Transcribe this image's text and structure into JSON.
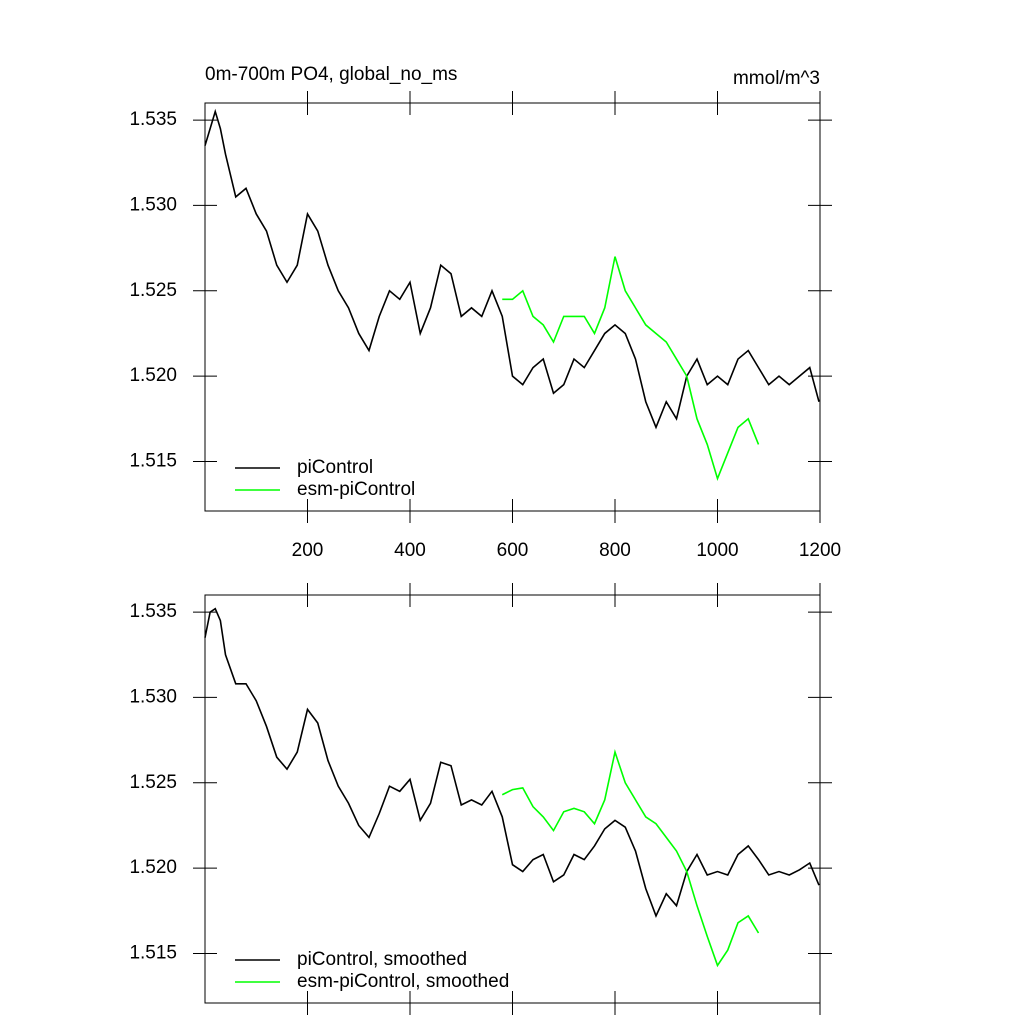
{
  "chart_data": [
    {
      "type": "line",
      "title": "0m-700m PO4, global_no_ms",
      "units": "mmol/m^3",
      "xlim": [
        0,
        1200
      ],
      "xticks": [
        200,
        400,
        600,
        800,
        1000,
        1200
      ],
      "ylim": [
        1.5121,
        1.536
      ],
      "yticks": [
        1.515,
        {
          "value": 1.52,
          "label": "1.520"
        },
        1.525,
        {
          "value": 1.53,
          "label": "1.530"
        },
        1.535
      ],
      "legend": "lower left",
      "series": [
        {
          "name": "piControl",
          "color": "#000000",
          "x": [
            0,
            10,
            20,
            30,
            40,
            60,
            80,
            100,
            120,
            140,
            160,
            180,
            200,
            220,
            240,
            260,
            280,
            300,
            320,
            340,
            360,
            380,
            400,
            420,
            440,
            460,
            480,
            500,
            520,
            540,
            560,
            580,
            600,
            620,
            640,
            660,
            680,
            700,
            720,
            740,
            760,
            780,
            800,
            820,
            840,
            860,
            880,
            900,
            920,
            940,
            960,
            980,
            1000,
            1020,
            1040,
            1060,
            1080,
            1100,
            1120,
            1140,
            1160,
            1180,
            1198
          ],
          "values": [
            1.5335,
            1.5345,
            1.5355,
            1.5345,
            1.533,
            1.5305,
            1.531,
            1.5295,
            1.5285,
            1.5265,
            1.5255,
            1.5265,
            1.5295,
            1.5285,
            1.5265,
            1.525,
            1.524,
            1.5225,
            1.5215,
            1.5235,
            1.525,
            1.5245,
            1.5255,
            1.5225,
            1.524,
            1.5265,
            1.526,
            1.5235,
            1.524,
            1.5235,
            1.525,
            1.5235,
            1.52,
            1.5195,
            1.5205,
            1.521,
            1.519,
            1.5195,
            1.521,
            1.5205,
            1.5215,
            1.5225,
            1.523,
            1.5225,
            1.521,
            1.5185,
            1.517,
            1.5185,
            1.5175,
            1.52,
            1.521,
            1.5195,
            1.52,
            1.5195,
            1.521,
            1.5215,
            1.5205,
            1.5195,
            1.52,
            1.5195,
            1.52,
            1.5205,
            1.5185
          ]
        },
        {
          "name": "esm-piControl",
          "color": "#00ff00",
          "x": [
            580,
            600,
            620,
            640,
            660,
            680,
            700,
            720,
            740,
            760,
            780,
            800,
            820,
            840,
            860,
            880,
            900,
            920,
            940,
            960,
            980,
            1000,
            1020,
            1040,
            1060,
            1080
          ],
          "values": [
            1.5245,
            1.5245,
            1.525,
            1.5235,
            1.523,
            1.522,
            1.5235,
            1.5235,
            1.5235,
            1.5225,
            1.524,
            1.527,
            1.525,
            1.524,
            1.523,
            1.5225,
            1.522,
            1.521,
            1.52,
            1.5175,
            1.516,
            1.514,
            1.5155,
            1.517,
            1.5175,
            1.516
          ]
        }
      ]
    },
    {
      "type": "line",
      "xlim": [
        0,
        1200
      ],
      "xticks": [
        200,
        400,
        600,
        800,
        1000,
        1200
      ],
      "ylim": [
        1.5121,
        1.536
      ],
      "yticks": [
        1.515,
        {
          "value": 1.52,
          "label": "1.520"
        },
        1.525,
        {
          "value": 1.53,
          "label": "1.530"
        },
        1.535
      ],
      "legend": "lower left",
      "series": [
        {
          "name": "piControl, smoothed",
          "color": "#000000",
          "x": [
            0,
            10,
            20,
            30,
            40,
            60,
            80,
            100,
            120,
            140,
            160,
            180,
            200,
            220,
            240,
            260,
            280,
            300,
            320,
            340,
            360,
            380,
            400,
            420,
            440,
            460,
            480,
            500,
            520,
            540,
            560,
            580,
            600,
            620,
            640,
            660,
            680,
            700,
            720,
            740,
            760,
            780,
            800,
            820,
            840,
            860,
            880,
            900,
            920,
            940,
            960,
            980,
            1000,
            1020,
            1040,
            1060,
            1080,
            1100,
            1120,
            1140,
            1160,
            1180,
            1198
          ],
          "values": [
            1.5335,
            1.535,
            1.5352,
            1.5345,
            1.5325,
            1.5308,
            1.5308,
            1.5298,
            1.5283,
            1.5265,
            1.5258,
            1.5268,
            1.5293,
            1.5285,
            1.5263,
            1.5248,
            1.5238,
            1.5225,
            1.5218,
            1.5232,
            1.5248,
            1.5245,
            1.5252,
            1.5228,
            1.5238,
            1.5262,
            1.526,
            1.5237,
            1.524,
            1.5237,
            1.5245,
            1.523,
            1.5202,
            1.5198,
            1.5205,
            1.5208,
            1.5192,
            1.5196,
            1.5208,
            1.5205,
            1.5213,
            1.5223,
            1.5228,
            1.5224,
            1.521,
            1.5188,
            1.5172,
            1.5185,
            1.5178,
            1.5198,
            1.5208,
            1.5196,
            1.5198,
            1.5196,
            1.5208,
            1.5213,
            1.5205,
            1.5196,
            1.5198,
            1.5196,
            1.5199,
            1.5203,
            1.519
          ]
        },
        {
          "name": "esm-piControl, smoothed",
          "color": "#00ff00",
          "x": [
            580,
            600,
            620,
            640,
            660,
            680,
            700,
            720,
            740,
            760,
            780,
            800,
            820,
            840,
            860,
            880,
            900,
            920,
            940,
            960,
            980,
            1000,
            1020,
            1040,
            1060,
            1080
          ],
          "values": [
            1.5243,
            1.5246,
            1.5247,
            1.5236,
            1.523,
            1.5222,
            1.5233,
            1.5235,
            1.5233,
            1.5226,
            1.524,
            1.5268,
            1.525,
            1.524,
            1.523,
            1.5226,
            1.5218,
            1.521,
            1.5198,
            1.5178,
            1.516,
            1.5143,
            1.5152,
            1.5168,
            1.5172,
            1.5162
          ]
        }
      ]
    }
  ]
}
